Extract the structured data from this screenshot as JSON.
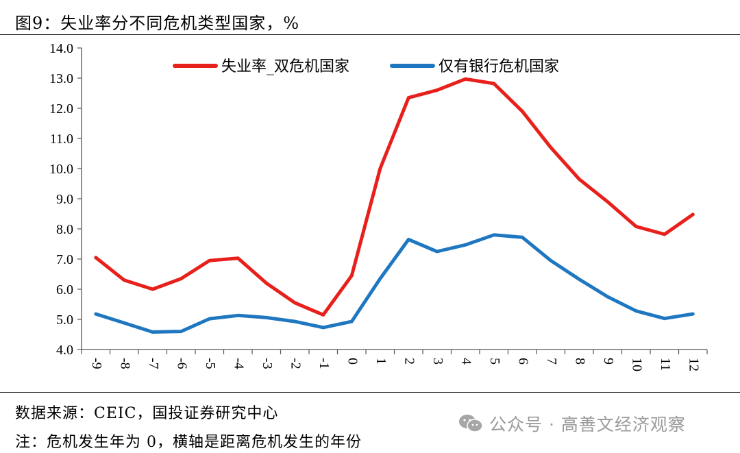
{
  "title": "图9：失业率分不同危机类型国家，%",
  "chart_data": {
    "type": "line",
    "title": "图9：失业率分不同危机类型国家，%",
    "xlabel": "",
    "ylabel": "",
    "x": [
      -9,
      -8,
      -7,
      -6,
      -5,
      -4,
      -3,
      -2,
      -1,
      0,
      1,
      2,
      3,
      4,
      5,
      6,
      7,
      8,
      9,
      10,
      11,
      12
    ],
    "x_tick_labels": [
      "-9",
      "-8",
      "-7",
      "-6",
      "-5",
      "-4",
      "-3",
      "-2",
      "-1",
      "0",
      "1",
      "2",
      "3",
      "4",
      "5",
      "6",
      "7",
      "8",
      "9",
      "10",
      "11",
      "12"
    ],
    "ylim": [
      4.0,
      14.0
    ],
    "y_ticks": [
      "4.0",
      "5.0",
      "6.0",
      "7.0",
      "8.0",
      "9.0",
      "10.0",
      "11.0",
      "12.0",
      "13.0",
      "14.0"
    ],
    "grid": false,
    "legend_position": "top",
    "series": [
      {
        "name": "失业率_双危机国家",
        "color": "#e8201b",
        "values": [
          7.05,
          6.3,
          6.0,
          6.35,
          6.95,
          7.03,
          6.2,
          5.55,
          5.15,
          6.45,
          10.0,
          12.35,
          12.6,
          12.97,
          12.82,
          11.9,
          10.7,
          9.65,
          8.9,
          8.08,
          7.82,
          8.48
        ]
      },
      {
        "name": "仅有银行危机国家",
        "color": "#1f77c0",
        "values": [
          5.18,
          4.88,
          4.58,
          4.6,
          5.02,
          5.13,
          5.06,
          4.93,
          4.73,
          4.93,
          6.35,
          7.65,
          7.25,
          7.47,
          7.8,
          7.72,
          6.95,
          6.33,
          5.75,
          5.28,
          5.03,
          5.18
        ]
      }
    ]
  },
  "footer": {
    "source": "数据来源：CEIC，国投证券研究中心",
    "note": "注：危机发生年为 0，横轴是距离危机发生的年份"
  },
  "watermark": {
    "text": "公众号 · 高善文经济观察",
    "icon": "wechat-icon"
  }
}
